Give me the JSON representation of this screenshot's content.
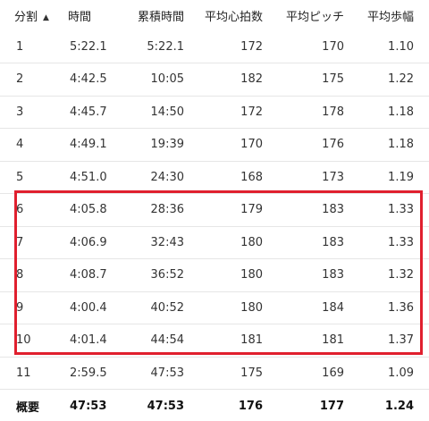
{
  "headers": {
    "split": "分割",
    "time": "時間",
    "cumulative": "累積時間",
    "avg_hr": "平均心拍数",
    "avg_cadence": "平均ピッチ",
    "avg_stride": "平均歩幅"
  },
  "sort_icon": "triangle-up-icon",
  "rows": [
    {
      "split": "1",
      "time": "5:22.1",
      "cumulative": "5:22.1",
      "avg_hr": "172",
      "avg_cadence": "170",
      "avg_stride": "1.10"
    },
    {
      "split": "2",
      "time": "4:42.5",
      "cumulative": "10:05",
      "avg_hr": "182",
      "avg_cadence": "175",
      "avg_stride": "1.22"
    },
    {
      "split": "3",
      "time": "4:45.7",
      "cumulative": "14:50",
      "avg_hr": "172",
      "avg_cadence": "178",
      "avg_stride": "1.18"
    },
    {
      "split": "4",
      "time": "4:49.1",
      "cumulative": "19:39",
      "avg_hr": "170",
      "avg_cadence": "176",
      "avg_stride": "1.18"
    },
    {
      "split": "5",
      "time": "4:51.0",
      "cumulative": "24:30",
      "avg_hr": "168",
      "avg_cadence": "173",
      "avg_stride": "1.19"
    },
    {
      "split": "6",
      "time": "4:05.8",
      "cumulative": "28:36",
      "avg_hr": "179",
      "avg_cadence": "183",
      "avg_stride": "1.33"
    },
    {
      "split": "7",
      "time": "4:06.9",
      "cumulative": "32:43",
      "avg_hr": "180",
      "avg_cadence": "183",
      "avg_stride": "1.33"
    },
    {
      "split": "8",
      "time": "4:08.7",
      "cumulative": "36:52",
      "avg_hr": "180",
      "avg_cadence": "183",
      "avg_stride": "1.32"
    },
    {
      "split": "9",
      "time": "4:00.4",
      "cumulative": "40:52",
      "avg_hr": "180",
      "avg_cadence": "184",
      "avg_stride": "1.36"
    },
    {
      "split": "10",
      "time": "4:01.4",
      "cumulative": "44:54",
      "avg_hr": "181",
      "avg_cadence": "181",
      "avg_stride": "1.37"
    },
    {
      "split": "11",
      "time": "2:59.5",
      "cumulative": "47:53",
      "avg_hr": "175",
      "avg_cadence": "169",
      "avg_stride": "1.09"
    }
  ],
  "summary": {
    "split": "概要",
    "time": "47:53",
    "cumulative": "47:53",
    "avg_hr": "176",
    "avg_cadence": "177",
    "avg_stride": "1.24"
  },
  "highlight_color": "#e01f2e"
}
